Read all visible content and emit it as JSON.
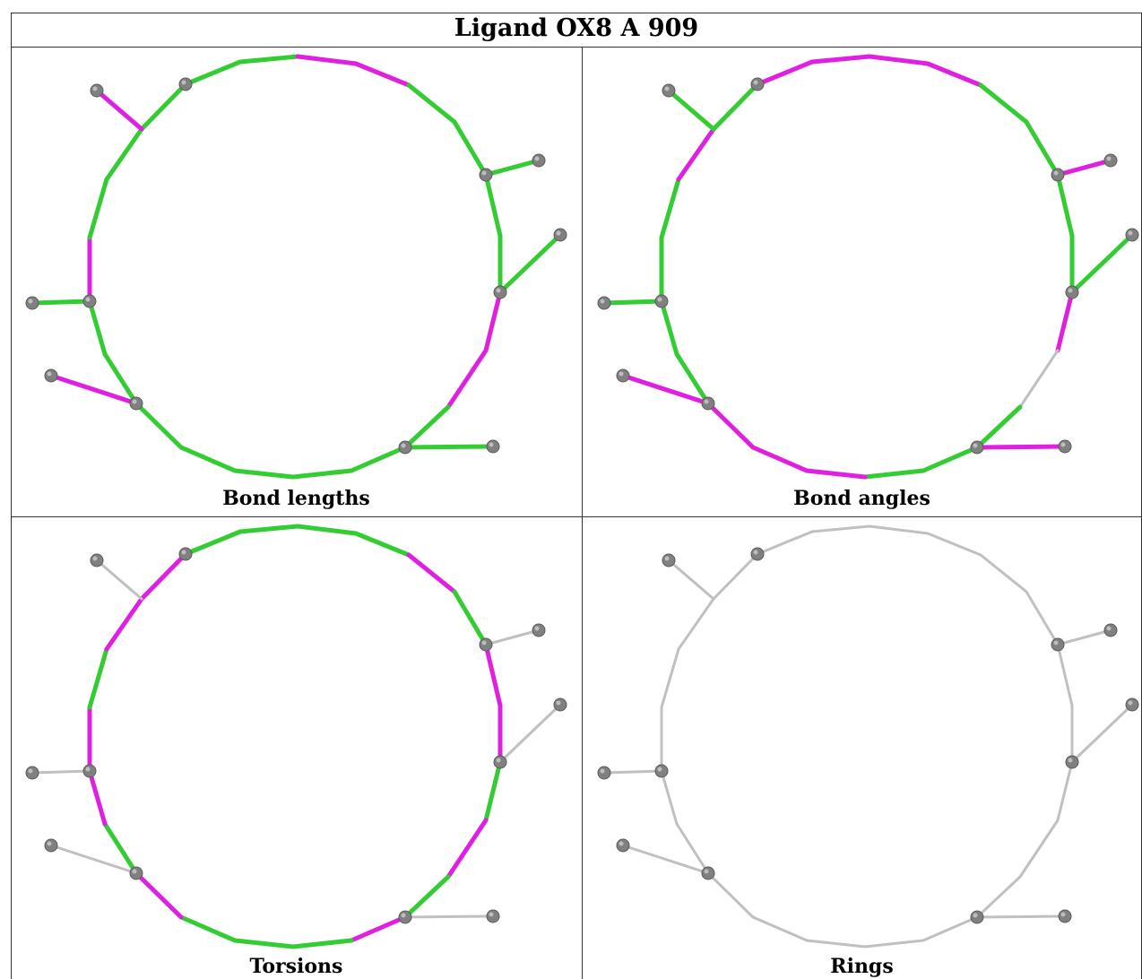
{
  "title": "Ligand OX8 A 909",
  "colors": {
    "good": "#33cc33",
    "outlier": "#e020e0",
    "neutral": "#c0c0c0",
    "atom": "#808080"
  },
  "panels": [
    {
      "id": "bond-lengths",
      "caption": "Bond lengths",
      "ring": [
        "g",
        "g",
        "m",
        "m",
        "g",
        "g",
        "g",
        "g",
        "m",
        "m",
        "g",
        "g",
        "g",
        "g",
        "g",
        "g",
        "g",
        "g",
        "m",
        "g",
        "g",
        "g",
        "g",
        "g",
        "g"
      ],
      "subs": [
        "m",
        "g",
        "g",
        "g",
        "m",
        "g",
        "g"
      ]
    },
    {
      "id": "bond-angles",
      "caption": "Bond angles",
      "ring": [
        "m",
        "m",
        "m",
        "m",
        "g",
        "g",
        "g",
        "g",
        "m",
        "n",
        "g",
        "g",
        "g",
        "m",
        "m",
        "m",
        "g",
        "g",
        "g",
        "g",
        "m",
        "g",
        "n",
        "g",
        "m"
      ],
      "subs": [
        "g",
        "m",
        "g",
        "m",
        "m",
        "g",
        "g"
      ]
    },
    {
      "id": "torsions",
      "caption": "Torsions",
      "ring": [
        "g",
        "g",
        "g",
        "g",
        "m",
        "g",
        "m",
        "m",
        "g",
        "m",
        "g",
        "m",
        "g",
        "g",
        "g",
        "m",
        "g",
        "m",
        "m",
        "g",
        "m",
        "m",
        "m",
        "g",
        "g"
      ],
      "subs": [
        "n",
        "n",
        "n",
        "n",
        "n",
        "n",
        "n"
      ]
    },
    {
      "id": "rings",
      "caption": "Rings",
      "ring": [
        "n",
        "n",
        "n",
        "n",
        "n",
        "n",
        "n",
        "n",
        "n",
        "n",
        "n",
        "n",
        "n",
        "n",
        "n",
        "n",
        "n",
        "n",
        "n",
        "n",
        "n",
        "n",
        "n",
        "n",
        "n"
      ],
      "subs": [
        "n",
        "n",
        "n",
        "n",
        "n",
        "n",
        "n"
      ]
    }
  ]
}
